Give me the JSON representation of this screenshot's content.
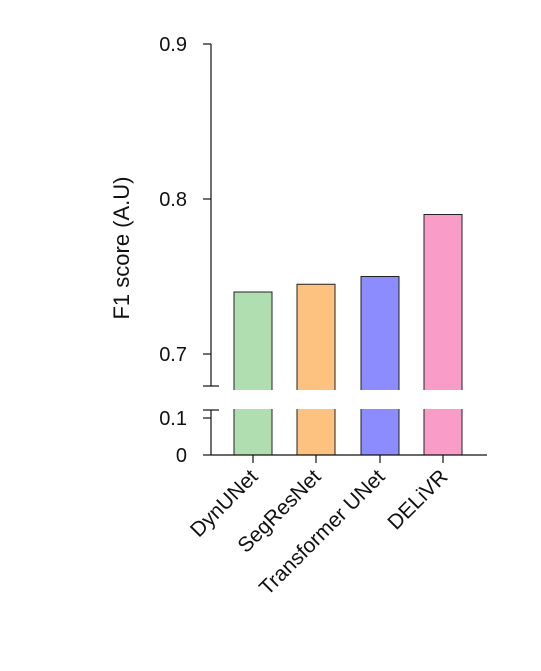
{
  "chart_data": {
    "type": "bar",
    "title": "",
    "xlabel": "",
    "ylabel": "F1 score (A.U)",
    "categories": [
      "DynUNet",
      "SegResNet",
      "Transformer UNet",
      "DELiVR"
    ],
    "values": [
      0.74,
      0.745,
      0.75,
      0.79
    ],
    "colors": [
      "#b0deb0",
      "#fdc180",
      "#8c8cff",
      "#f99cc8"
    ],
    "ylim_upper": [
      0.68,
      0.9
    ],
    "ylim_lower": [
      0,
      0.12
    ],
    "yticks_upper": [
      "0.7",
      "0.8",
      "0.9"
    ],
    "yticks_lower": [
      "0",
      "0.1"
    ],
    "broken_axis": true,
    "grid": false,
    "legend": "none"
  }
}
